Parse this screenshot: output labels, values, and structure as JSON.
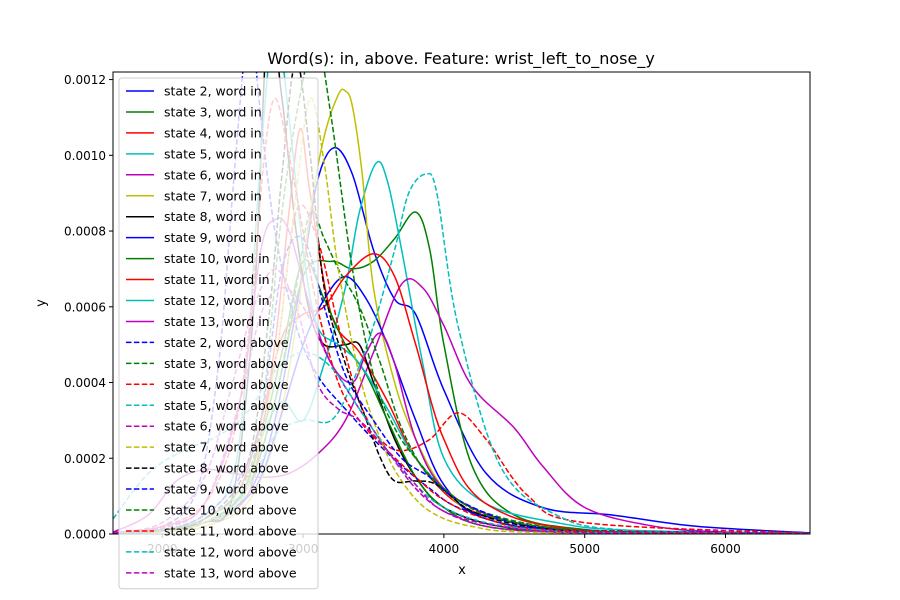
{
  "chart_data": {
    "type": "line",
    "title": "Word(s): in, above. Feature: wrist_left_to_nose_y",
    "xlabel": "x",
    "ylabel": "y",
    "xlim": [
      1650,
      6600
    ],
    "ylim": [
      0,
      0.00122
    ],
    "xticks": [
      {
        "value": 2000,
        "label": "2000"
      },
      {
        "value": 3000,
        "label": "3000"
      },
      {
        "value": 4000,
        "label": "4000"
      },
      {
        "value": 5000,
        "label": "5000"
      },
      {
        "value": 6000,
        "label": "6000"
      }
    ],
    "yticks": [
      {
        "value": 0,
        "label": "0.0000"
      },
      {
        "value": 0.0002,
        "label": "0.0002"
      },
      {
        "value": 0.0004,
        "label": "0.0004"
      },
      {
        "value": 0.0006,
        "label": "0.0006"
      },
      {
        "value": 0.0008,
        "label": "0.0008"
      },
      {
        "value": 0.001,
        "label": "0.0010"
      },
      {
        "value": 0.0012,
        "label": "0.0012"
      }
    ],
    "legend_position": "upper-left",
    "grid": false,
    "series": [
      {
        "name": "state 2, word in",
        "color": "#0000ff",
        "dash": "solid",
        "x": [
          1650,
          2000,
          2300,
          2600,
          2800,
          3000,
          3100,
          3220,
          3350,
          3500,
          3650,
          3800,
          4000,
          4300,
          4700,
          5200,
          5800,
          6600
        ],
        "y": [
          4e-06,
          1.2e-05,
          3e-05,
          0.0001,
          0.0003,
          0.0007,
          0.00093,
          0.00102,
          0.00095,
          0.00075,
          0.00062,
          0.00058,
          0.00038,
          0.00016,
          7e-05,
          5e-05,
          2e-05,
          3e-06
        ]
      },
      {
        "name": "state 3, word in",
        "color": "#008000",
        "dash": "solid",
        "x": [
          1650,
          2000,
          2300,
          2600,
          2800,
          3000,
          3200,
          3350,
          3500,
          3650,
          3800,
          3900,
          4000,
          4200,
          4500,
          5000,
          5500,
          6600
        ],
        "y": [
          2e-06,
          8e-06,
          3e-05,
          0.00012,
          0.00035,
          0.00068,
          0.00072,
          0.0007,
          0.00072,
          0.00078,
          0.00085,
          0.00075,
          0.0005,
          0.00018,
          5e-05,
          1.2e-05,
          4e-06,
          1e-06
        ]
      },
      {
        "name": "state 4, word in",
        "color": "#ff0000",
        "dash": "solid",
        "x": [
          1650,
          2000,
          2300,
          2500,
          2650,
          2800,
          2900,
          2980,
          3050,
          3200,
          3400,
          3600,
          3800,
          4100,
          4500,
          5000,
          6600
        ],
        "y": [
          2e-06,
          1e-05,
          3e-05,
          6e-05,
          0.00015,
          0.0005,
          0.00085,
          0.00107,
          0.0009,
          0.00058,
          0.00048,
          0.00035,
          0.0002,
          8e-05,
          3e-05,
          8e-06,
          1e-06
        ]
      },
      {
        "name": "state 5, word in",
        "color": "#00bfbf",
        "dash": "solid",
        "x": [
          1650,
          2000,
          2300,
          2550,
          2700,
          2850,
          3000,
          3150,
          3300,
          3400,
          3520,
          3600,
          3700,
          3850,
          4000,
          4300,
          4800,
          5300,
          6600
        ],
        "y": [
          3e-06,
          1e-05,
          3e-05,
          8e-05,
          0.00025,
          0.00035,
          0.0003,
          0.00045,
          0.00065,
          0.00085,
          0.00098,
          0.00093,
          0.00075,
          0.00045,
          0.0002,
          8e-05,
          3e-05,
          1e-05,
          2e-06
        ]
      },
      {
        "name": "state 6, word in",
        "color": "#bf00bf",
        "dash": "solid",
        "x": [
          1650,
          1900,
          2100,
          2300,
          2500,
          2700,
          2900,
          3100,
          3300,
          3500,
          3700,
          3850,
          4000,
          4200,
          4500,
          4700,
          5000,
          5500,
          6000,
          6600
        ],
        "y": [
          5e-06,
          5e-05,
          0.00014,
          0.00017,
          0.00016,
          0.00015,
          0.00016,
          0.00021,
          0.0003,
          0.00048,
          0.00066,
          0.00065,
          0.00055,
          0.00039,
          0.00028,
          0.00018,
          7e-05,
          2e-05,
          5e-06,
          1e-06
        ]
      },
      {
        "name": "state 7, word in",
        "color": "#bfbf00",
        "dash": "solid",
        "x": [
          1650,
          2000,
          2300,
          2600,
          2800,
          2950,
          3050,
          3150,
          3250,
          3300,
          3350,
          3420,
          3500,
          3650,
          3800,
          4000,
          4300,
          5000,
          6600
        ],
        "y": [
          1e-06,
          6e-06,
          2e-05,
          8e-05,
          0.00025,
          0.00055,
          0.00085,
          0.00105,
          0.00116,
          0.00117,
          0.00113,
          0.00095,
          0.00065,
          0.0004,
          0.00025,
          0.00012,
          4e-05,
          5e-06,
          1e-06
        ]
      },
      {
        "name": "state 8, word in",
        "color": "#000000",
        "dash": "solid",
        "x": [
          1650,
          2000,
          2300,
          2500,
          2650,
          2750,
          2850,
          2950,
          3050,
          3150,
          3300,
          3400,
          3500,
          3650,
          3800,
          4000,
          4400,
          5000,
          6600
        ],
        "y": [
          2e-06,
          8e-06,
          3e-05,
          0.0001,
          0.0006,
          0.00135,
          0.00115,
          0.0008,
          0.00058,
          0.0005,
          0.0005,
          0.0005,
          0.0004,
          0.00025,
          0.00015,
          7e-05,
          2e-05,
          4e-06,
          1e-06
        ]
      },
      {
        "name": "state 9, word in",
        "color": "#0000ff",
        "dash": "solid",
        "x": [
          1650,
          2000,
          2300,
          2550,
          2700,
          2850,
          3000,
          3150,
          3300,
          3450,
          3600,
          3800,
          4000,
          4300,
          5000,
          6600
        ],
        "y": [
          2e-06,
          8e-06,
          3e-05,
          8e-05,
          0.00015,
          0.00032,
          0.0005,
          0.00062,
          0.00068,
          0.00062,
          0.0005,
          0.0003,
          0.00013,
          4e-05,
          6e-06,
          1e-06
        ]
      },
      {
        "name": "state 10, word in",
        "color": "#008000",
        "dash": "solid",
        "x": [
          1650,
          2000,
          2300,
          2550,
          2700,
          2850,
          3000,
          3150,
          3300,
          3450,
          3600,
          3800,
          4000,
          4300,
          5000,
          6600
        ],
        "y": [
          2e-06,
          8e-06,
          3e-05,
          0.0001,
          0.00025,
          0.00048,
          0.00072,
          0.00062,
          0.0005,
          0.00042,
          0.0003,
          0.00015,
          7e-05,
          2e-05,
          4e-06,
          1e-06
        ]
      },
      {
        "name": "state 11, word in",
        "color": "#ff0000",
        "dash": "solid",
        "x": [
          1650,
          2000,
          2300,
          2550,
          2700,
          2850,
          3000,
          3150,
          3300,
          3500,
          3650,
          3800,
          4000,
          4300,
          5000,
          6600
        ],
        "y": [
          2e-06,
          1e-05,
          4e-05,
          0.00012,
          0.0003,
          0.00052,
          0.00058,
          0.0006,
          0.00068,
          0.00074,
          0.00068,
          0.0005,
          0.00025,
          8e-05,
          1e-05,
          1e-06
        ]
      },
      {
        "name": "state 12, word in",
        "color": "#00bfbf",
        "dash": "solid",
        "x": [
          1650,
          2000,
          2300,
          2500,
          2600,
          2700,
          2800,
          2900,
          3000,
          3100,
          3250,
          3400,
          3600,
          3800,
          4100,
          4500,
          5000,
          6600
        ],
        "y": [
          2e-06,
          1e-05,
          5e-05,
          0.00015,
          0.00045,
          0.001,
          0.00135,
          0.0011,
          0.00075,
          0.00055,
          0.0005,
          0.00045,
          0.00033,
          0.0002,
          9e-05,
          3e-05,
          8e-06,
          1e-06
        ]
      },
      {
        "name": "state 13, word in",
        "color": "#bf00bf",
        "dash": "solid",
        "x": [
          1650,
          2000,
          2300,
          2550,
          2700,
          2800,
          2900,
          3050,
          3200,
          3350,
          3450,
          3550,
          3650,
          3800,
          4000,
          4400,
          5000,
          6600
        ],
        "y": [
          3e-06,
          2e-05,
          8e-05,
          0.00035,
          0.00075,
          0.00083,
          0.0008,
          0.0006,
          0.00045,
          0.0004,
          0.00048,
          0.00053,
          0.00045,
          0.00025,
          0.00012,
          4e-05,
          8e-06,
          1e-06
        ]
      },
      {
        "name": "state 2, word above",
        "color": "#0000ff",
        "dash": "dashed",
        "x": [
          1650,
          2000,
          2250,
          2400,
          2500,
          2580,
          2630,
          2700,
          2800,
          2950,
          3100,
          3300,
          3500,
          3700,
          3900,
          4100,
          4500,
          5000,
          6600
        ],
        "y": [
          3e-06,
          2e-05,
          0.00012,
          0.00045,
          0.0009,
          0.00125,
          0.00135,
          0.0011,
          0.0008,
          0.00055,
          0.00042,
          0.00033,
          0.00025,
          0.00018,
          0.00012,
          7e-05,
          3e-05,
          1e-05,
          2e-06
        ]
      },
      {
        "name": "state 3, word above",
        "color": "#008000",
        "dash": "dashed",
        "x": [
          1650,
          2000,
          2300,
          2600,
          2800,
          2950,
          3050,
          3150,
          3250,
          3400,
          3550,
          3700,
          3900,
          4200,
          4700,
          5300,
          6600
        ],
        "y": [
          2e-06,
          8e-06,
          3e-05,
          0.00012,
          0.00035,
          0.00065,
          0.00085,
          0.00078,
          0.0007,
          0.0006,
          0.00045,
          0.00028,
          0.00015,
          7e-05,
          2e-05,
          5e-06,
          1e-06
        ]
      },
      {
        "name": "state 4, word above",
        "color": "#ff0000",
        "dash": "dashed",
        "x": [
          1650,
          2000,
          2300,
          2600,
          2800,
          2950,
          3100,
          3250,
          3400,
          3550,
          3700,
          3900,
          4100,
          4300,
          4600,
          5000,
          6600
        ],
        "y": [
          3e-06,
          1e-05,
          4e-05,
          0.00015,
          0.00045,
          0.00085,
          0.00078,
          0.00055,
          0.00035,
          0.00025,
          0.00022,
          0.00025,
          0.00032,
          0.00025,
          0.0001,
          3e-05,
          2e-06
        ]
      },
      {
        "name": "state 5, word above",
        "color": "#00bfbf",
        "dash": "dashed",
        "x": [
          1650,
          2000,
          2300,
          2600,
          2800,
          3000,
          3200,
          3350,
          3500,
          3650,
          3750,
          3870,
          3950,
          4100,
          4400,
          4800,
          5300,
          6600
        ],
        "y": [
          3e-06,
          1e-05,
          4e-05,
          0.00012,
          0.00026,
          0.0003,
          0.0003,
          0.0004,
          0.00055,
          0.00075,
          0.0009,
          0.00095,
          0.0009,
          0.00055,
          0.00018,
          5e-05,
          1e-05,
          1e-06
        ]
      },
      {
        "name": "state 6, word above",
        "color": "#bf00bf",
        "dash": "dashed",
        "x": [
          1650,
          2000,
          2300,
          2550,
          2700,
          2850,
          3000,
          3200,
          3400,
          3600,
          3800,
          4000,
          4300,
          4700,
          5200,
          6600
        ],
        "y": [
          3e-06,
          1.5e-05,
          8e-05,
          0.00035,
          0.00058,
          0.00065,
          0.0006,
          0.00045,
          0.00033,
          0.00022,
          0.00012,
          6e-05,
          2e-05,
          6e-06,
          2e-06,
          1e-06
        ]
      },
      {
        "name": "state 7, word above",
        "color": "#bfbf00",
        "dash": "dashed",
        "x": [
          1650,
          2000,
          2300,
          2600,
          2800,
          2950,
          3050,
          3150,
          3250,
          3400,
          3550,
          3700,
          3900,
          4200,
          4700,
          6600
        ],
        "y": [
          2e-06,
          8e-06,
          3e-05,
          0.00012,
          0.00045,
          0.0009,
          0.00115,
          0.00098,
          0.0007,
          0.00042,
          0.00025,
          0.00014,
          6e-05,
          2e-05,
          4e-06,
          1e-06
        ]
      },
      {
        "name": "state 8, word above",
        "color": "#000000",
        "dash": "dashed",
        "x": [
          1650,
          2000,
          2300,
          2600,
          2750,
          2850,
          2950,
          3050,
          3150,
          3300,
          3450,
          3550,
          3650,
          3800,
          3950,
          4200,
          4600,
          5200,
          6600
        ],
        "y": [
          3e-06,
          1e-05,
          4e-05,
          0.00018,
          0.00055,
          0.00095,
          0.00125,
          0.001,
          0.00065,
          0.00045,
          0.0003,
          0.0002,
          0.00014,
          0.00014,
          0.00013,
          6e-05,
          2e-05,
          4e-06,
          1e-06
        ]
      },
      {
        "name": "state 9, word above",
        "color": "#0000ff",
        "dash": "dashed",
        "x": [
          1650,
          2000,
          2300,
          2550,
          2700,
          2850,
          3000,
          3150,
          3300,
          3500,
          3700,
          3900,
          4100,
          4500,
          5000,
          6600
        ],
        "y": [
          2e-06,
          1e-05,
          5e-05,
          0.00015,
          0.0003,
          0.0007,
          0.00078,
          0.0006,
          0.00042,
          0.0003,
          0.0002,
          0.00015,
          9e-05,
          3e-05,
          8e-06,
          1e-06
        ]
      },
      {
        "name": "state 10, word above",
        "color": "#008000",
        "dash": "dashed",
        "x": [
          1650,
          2000,
          2300,
          2550,
          2700,
          2850,
          3000,
          3100,
          3200,
          3350,
          3500,
          3650,
          3800,
          4000,
          4300,
          4800,
          5500,
          6600
        ],
        "y": [
          2e-06,
          1e-05,
          4e-05,
          0.00012,
          0.0003,
          0.00085,
          0.0012,
          0.0013,
          0.0011,
          0.0007,
          0.00042,
          0.00028,
          0.0002,
          0.00012,
          5e-05,
          1.5e-05,
          4e-06,
          1e-06
        ]
      },
      {
        "name": "state 11, word above",
        "color": "#ff0000",
        "dash": "dashed",
        "x": [
          1650,
          2000,
          2300,
          2500,
          2620,
          2720,
          2800,
          2900,
          3000,
          3100,
          3250,
          3400,
          3600,
          3800,
          4000,
          4300,
          4800,
          6600
        ],
        "y": [
          3e-06,
          2e-05,
          8e-05,
          0.00025,
          0.00055,
          0.00098,
          0.00115,
          0.001,
          0.0008,
          0.0006,
          0.0004,
          0.0003,
          0.00022,
          0.00015,
          9e-05,
          4e-05,
          1e-05,
          1e-06
        ]
      },
      {
        "name": "state 12, word above",
        "color": "#00bfbf",
        "dash": "dashed",
        "x": [
          1650,
          1900,
          2150,
          2400,
          2600,
          2800,
          3000,
          3200,
          3400,
          3600,
          3800,
          4000,
          4300,
          4700,
          5200,
          6600
        ],
        "y": [
          4e-05,
          0.00016,
          0.00022,
          0.00026,
          0.00032,
          0.00043,
          0.00048,
          0.00044,
          0.00033,
          0.00022,
          0.00013,
          7e-05,
          3e-05,
          1e-05,
          3e-06,
          1e-06
        ]
      },
      {
        "name": "state 13, word above",
        "color": "#bf00bf",
        "dash": "dashed",
        "x": [
          1650,
          2000,
          2300,
          2500,
          2650,
          2800,
          2950,
          3100,
          3250,
          3400,
          3600,
          3800,
          4000,
          4400,
          5000,
          6600
        ],
        "y": [
          3e-06,
          3e-05,
          0.00015,
          0.0004,
          0.0006,
          0.0007,
          0.0006,
          0.0004,
          0.00033,
          0.0003,
          0.00022,
          0.00013,
          6e-05,
          2e-05,
          4e-06,
          1e-06
        ]
      }
    ]
  }
}
